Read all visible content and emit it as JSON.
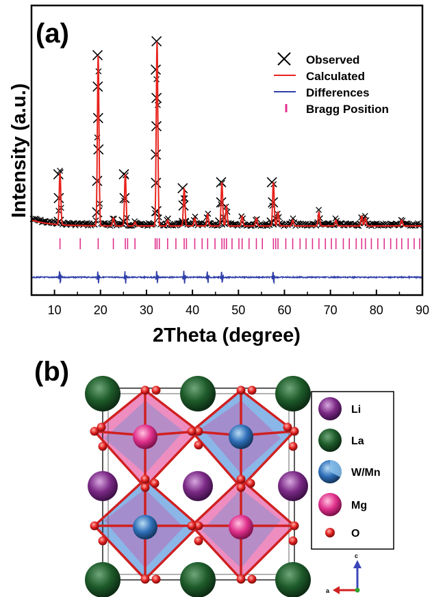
{
  "panel_a_label": "(a)",
  "panel_b_label": "(b)",
  "chart_data": {
    "type": "line",
    "xlabel": "2Theta (degree)",
    "ylabel": "Intensity (a.u.)",
    "xlim": [
      5,
      90
    ],
    "x_ticks": [
      10,
      20,
      30,
      40,
      50,
      60,
      70,
      80,
      90
    ],
    "ylim": [
      0,
      1.0
    ],
    "grid": false,
    "legend": {
      "position": "top-right",
      "entries": [
        {
          "label": "Observed",
          "marker": "cross",
          "color": "#000000"
        },
        {
          "label": "Calculated",
          "marker": "line",
          "color": "#e8221c"
        },
        {
          "label": "Differences",
          "marker": "line",
          "color": "#2f3ea8"
        },
        {
          "label": "Bragg Position",
          "marker": "tick",
          "color": "#e0308c"
        }
      ]
    },
    "peaks": [
      {
        "x": 11.2,
        "y": 0.26
      },
      {
        "x": 19.5,
        "y": 0.86
      },
      {
        "x": 22.8,
        "y": 0.04
      },
      {
        "x": 25.4,
        "y": 0.26
      },
      {
        "x": 27.5,
        "y": 0.02
      },
      {
        "x": 32.3,
        "y": 0.93
      },
      {
        "x": 34.6,
        "y": 0.03
      },
      {
        "x": 38.2,
        "y": 0.19
      },
      {
        "x": 40.5,
        "y": 0.04
      },
      {
        "x": 43.3,
        "y": 0.06
      },
      {
        "x": 46.4,
        "y": 0.22
      },
      {
        "x": 47.4,
        "y": 0.1
      },
      {
        "x": 50.8,
        "y": 0.05
      },
      {
        "x": 53.9,
        "y": 0.04
      },
      {
        "x": 57.6,
        "y": 0.22
      },
      {
        "x": 58.6,
        "y": 0.07
      },
      {
        "x": 61.8,
        "y": 0.03
      },
      {
        "x": 67.5,
        "y": 0.07
      },
      {
        "x": 71.2,
        "y": 0.03
      },
      {
        "x": 76.8,
        "y": 0.05
      },
      {
        "x": 77.6,
        "y": 0.04
      },
      {
        "x": 85.5,
        "y": 0.03
      }
    ],
    "bragg_positions": [
      11.2,
      15.6,
      19.5,
      22.8,
      25.4,
      25.9,
      27.5,
      31.9,
      32.3,
      32.8,
      34.6,
      36.4,
      38.2,
      38.7,
      40.5,
      42.1,
      43.3,
      44.9,
      46.4,
      46.9,
      47.4,
      48.6,
      50.1,
      50.8,
      52.3,
      53.9,
      55.2,
      57.6,
      58.1,
      58.6,
      60.3,
      61.8,
      63.4,
      64.7,
      66.1,
      67.5,
      68.9,
      70.2,
      71.2,
      72.8,
      74.1,
      75.6,
      76.8,
      77.6,
      78.9,
      80.3,
      81.7,
      83.1,
      84.4,
      85.5,
      86.9,
      88.2,
      89.4
    ],
    "difference_spikes": [
      11.2,
      19.5,
      25.4,
      32.3,
      38.2,
      43.3,
      46.4,
      57.6
    ]
  },
  "legend_b": {
    "entries": [
      {
        "label": "Li",
        "color": "#7b2a86"
      },
      {
        "label": "La",
        "color": "#1e5b2a"
      },
      {
        "label": "W/Mn",
        "color": "#2f6fb8"
      },
      {
        "label": "Mg",
        "color": "#e0308c"
      },
      {
        "label": "O",
        "color": "#e02020"
      }
    ]
  },
  "axes_b": {
    "c_label": "c",
    "a_label": "a"
  }
}
